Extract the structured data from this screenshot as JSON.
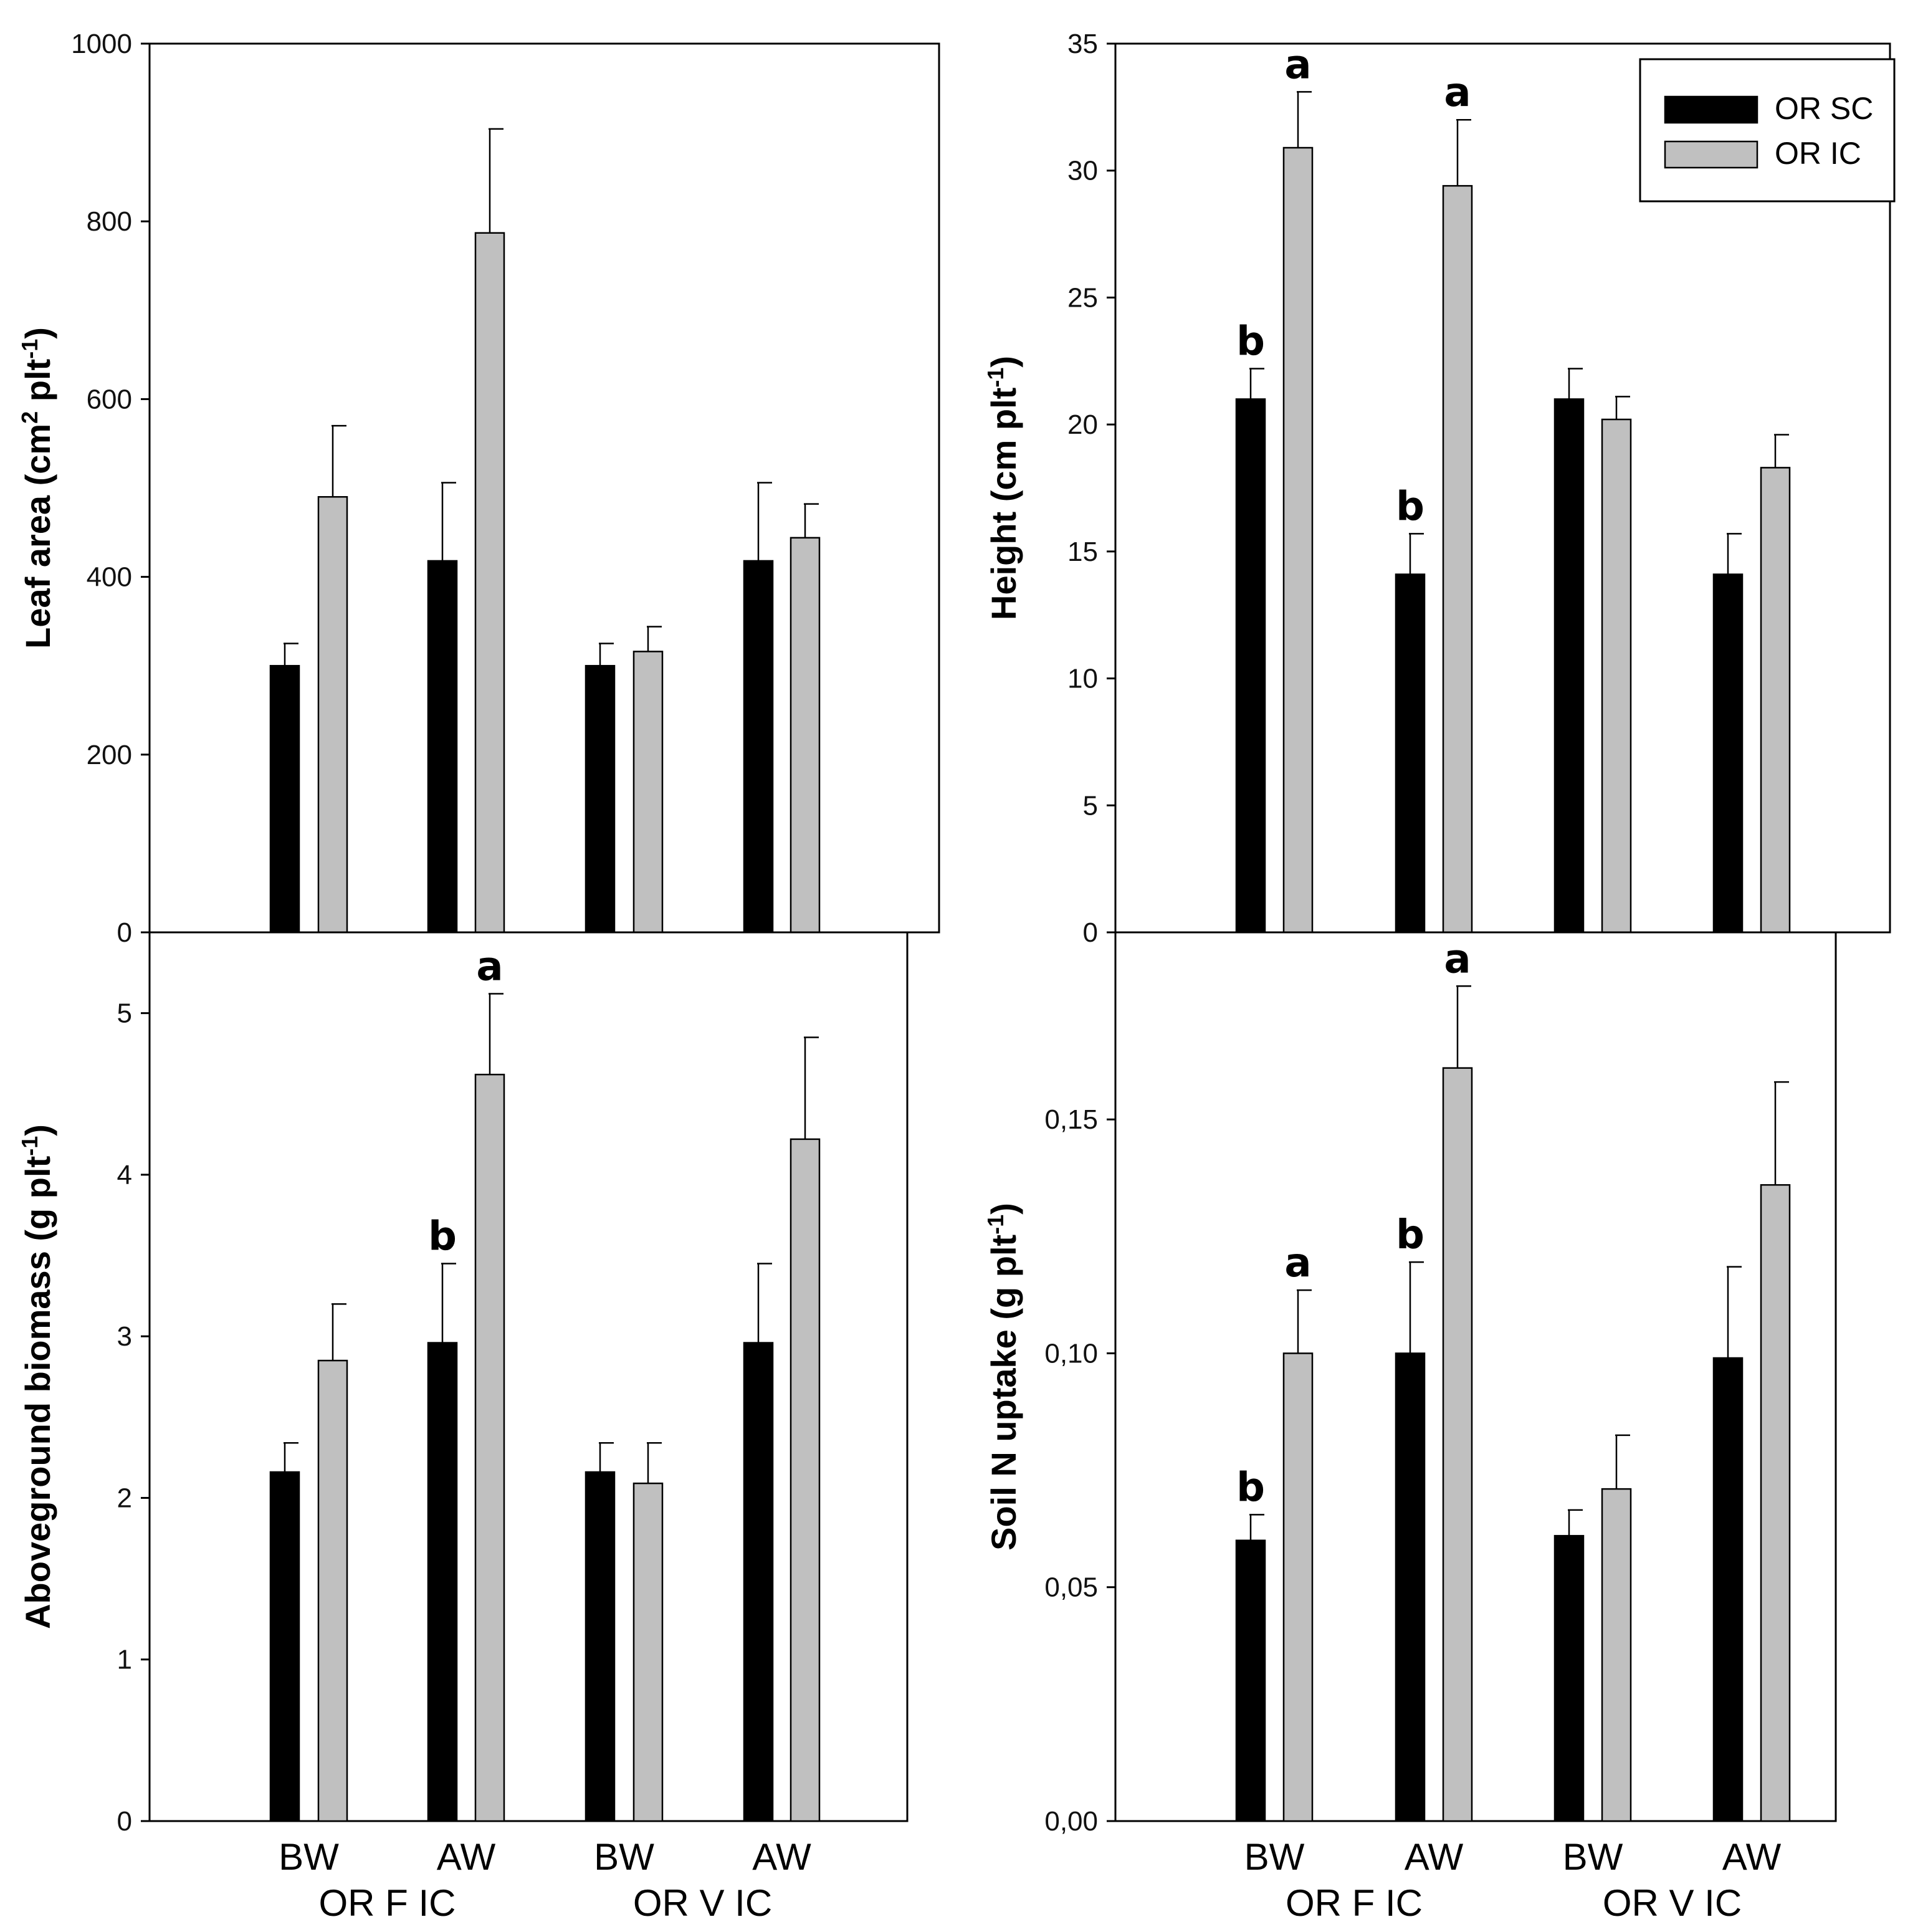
{
  "colors": {
    "or_sc": "#000000",
    "or_ic": "#c0c0c0",
    "axis": "#000000"
  },
  "chart_data": [
    {
      "id": "leaf-area",
      "type": "bar",
      "ylabel": "Leaf area (cm",
      "ylabel_sup1": "2",
      "ylabel_mid": " plt",
      "ylabel_sup2": "-1",
      "ylabel_end": ")",
      "ylim": [
        0,
        1000
      ],
      "yticks": [
        0,
        200,
        400,
        600,
        800,
        1000
      ],
      "ytick_labels": [
        "0",
        "200",
        "400",
        "600",
        "800",
        "1000"
      ],
      "categories": [
        "BW",
        "AW",
        "BW",
        "AW"
      ],
      "series": [
        {
          "name": "OR SC",
          "values": [
            300,
            418,
            300,
            418
          ],
          "errors": [
            25,
            88,
            25,
            88
          ],
          "letters": [
            "",
            "",
            "",
            ""
          ]
        },
        {
          "name": "OR IC",
          "values": [
            490,
            787,
            316,
            444
          ],
          "errors": [
            80,
            117,
            28,
            38
          ],
          "letters": [
            "",
            "",
            "",
            ""
          ]
        }
      ]
    },
    {
      "id": "height",
      "type": "bar",
      "ylabel": "Height (cm plt",
      "ylabel_sup1": "",
      "ylabel_mid": "",
      "ylabel_sup2": "-1",
      "ylabel_end": ")",
      "ylim": [
        0,
        35
      ],
      "yticks": [
        0,
        5,
        10,
        15,
        20,
        25,
        30,
        35
      ],
      "ytick_labels": [
        "0",
        "5",
        "10",
        "15",
        "20",
        "25",
        "30",
        "35"
      ],
      "categories": [
        "BW",
        "AW",
        "BW",
        "AW"
      ],
      "series": [
        {
          "name": "OR SC",
          "values": [
            21.0,
            14.1,
            21.0,
            14.1
          ],
          "errors": [
            1.2,
            1.6,
            1.2,
            1.6
          ],
          "letters": [
            "b",
            "b",
            "",
            ""
          ]
        },
        {
          "name": "OR IC",
          "values": [
            30.9,
            29.4,
            20.2,
            18.3
          ],
          "errors": [
            2.2,
            2.6,
            0.9,
            1.3
          ],
          "letters": [
            "a",
            "a",
            "",
            ""
          ]
        }
      ],
      "legend": [
        "OR SC",
        "OR IC"
      ]
    },
    {
      "id": "biomass",
      "type": "bar",
      "ylabel": "Aboveground biomass (g plt",
      "ylabel_sup1": "",
      "ylabel_mid": "",
      "ylabel_sup2": "-1",
      "ylabel_end": ")",
      "ylim": [
        0,
        5.5
      ],
      "yticks": [
        0,
        1,
        2,
        3,
        4,
        5
      ],
      "ytick_labels": [
        "0",
        "1",
        "2",
        "3",
        "4",
        "5"
      ],
      "categories": [
        "BW",
        "AW",
        "BW",
        "AW"
      ],
      "series": [
        {
          "name": "OR SC",
          "values": [
            2.16,
            2.96,
            2.16,
            2.96
          ],
          "errors": [
            0.18,
            0.49,
            0.18,
            0.49
          ],
          "letters": [
            "",
            "b",
            "",
            ""
          ]
        },
        {
          "name": "OR IC",
          "values": [
            2.85,
            4.62,
            2.09,
            4.22
          ],
          "errors": [
            0.35,
            0.5,
            0.25,
            0.63
          ],
          "letters": [
            "",
            "a",
            "",
            ""
          ]
        }
      ],
      "group_labels": [
        "OR F IC",
        "OR V IC"
      ]
    },
    {
      "id": "soil-n",
      "type": "bar",
      "ylabel": "Soil N uptake (g plt",
      "ylabel_sup1": "",
      "ylabel_mid": "",
      "ylabel_sup2": "-1",
      "ylabel_end": ")",
      "ylim": [
        0,
        0.19
      ],
      "yticks": [
        0,
        0.05,
        0.1,
        0.15
      ],
      "ytick_labels": [
        "0,00",
        "0,05",
        "0,10",
        "0,15"
      ],
      "categories": [
        "BW",
        "AW",
        "BW",
        "AW"
      ],
      "series": [
        {
          "name": "OR SC",
          "values": [
            0.06,
            0.1,
            0.061,
            0.099
          ],
          "errors": [
            0.0055,
            0.0195,
            0.0055,
            0.0195
          ],
          "letters": [
            "b",
            "b",
            "",
            ""
          ]
        },
        {
          "name": "OR IC",
          "values": [
            0.1,
            0.161,
            0.071,
            0.136
          ],
          "errors": [
            0.0135,
            0.0175,
            0.0115,
            0.022
          ],
          "letters": [
            "a",
            "a",
            "",
            ""
          ]
        }
      ],
      "group_labels": [
        "OR F IC",
        "OR V IC"
      ]
    }
  ]
}
